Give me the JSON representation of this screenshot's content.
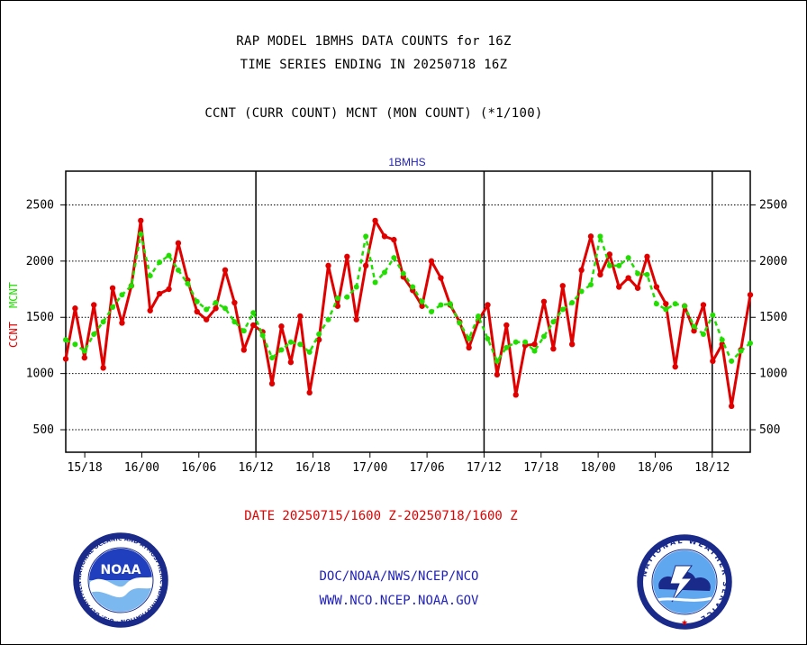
{
  "header": {
    "line1": "RAP MODEL 1BMHS DATA COUNTS for 16Z",
    "line2": "TIME SERIES ENDING IN 20250718 16Z",
    "line3": "CCNT (CURR COUNT) MCNT (MON COUNT) (*1/100)"
  },
  "footer": {
    "date_range": "DATE 20250715/1600 Z-20250718/1600 Z",
    "credit1": "DOC/NOAA/NWS/NCEP/NCO",
    "credit2": "WWW.NCO.NCEP.NOAA.GOV"
  },
  "logos": {
    "noaa": {
      "center_text": "NOAA",
      "ring_text": "NATIONAL OCEANIC AND ATMOSPHERIC ADMINISTRATION · U.S. DEPARTMENT OF COMMERCE"
    },
    "nws": {
      "ring_text": "NATIONAL WEATHER SERVICE"
    }
  },
  "chart_data": {
    "type": "line",
    "title": "1BMHS",
    "ylabel_left": [
      "CCNT",
      "MCNT"
    ],
    "ylim": [
      300,
      2800
    ],
    "yticks": [
      500,
      1000,
      1500,
      2000,
      2500
    ],
    "x_tick_labels": [
      "15/18",
      "16/00",
      "16/06",
      "16/12",
      "16/18",
      "17/00",
      "17/06",
      "17/12",
      "17/18",
      "18/00",
      "18/06",
      "18/12"
    ],
    "x_hours_start": "2025-07-15 16Z",
    "x_tick_hours": [
      2,
      8,
      14,
      20,
      26,
      32,
      38,
      44,
      50,
      56,
      62,
      68
    ],
    "day_boundaries_hours": [
      20,
      44,
      68
    ],
    "grid": true,
    "colors": {
      "ccnt": "#e00000",
      "mcnt": "#22dd00",
      "axis": "#000000",
      "title": "#2222bb"
    },
    "series": [
      {
        "name": "CCNT",
        "style": "solid",
        "values": [
          1130,
          1580,
          1140,
          1610,
          1050,
          1760,
          1450,
          1780,
          2360,
          1560,
          1710,
          1750,
          2160,
          1830,
          1550,
          1480,
          1580,
          1920,
          1630,
          1210,
          1430,
          1370,
          910,
          1420,
          1100,
          1510,
          830,
          1300,
          1960,
          1600,
          2040,
          1480,
          1960,
          2360,
          2220,
          2190,
          1860,
          1740,
          1600,
          2000,
          1850,
          1610,
          1460,
          1230,
          1470,
          1610,
          990,
          1430,
          810,
          1250,
          1260,
          1640,
          1220,
          1780,
          1260,
          1920,
          2220,
          1880,
          2060,
          1770,
          1850,
          1760,
          2040,
          1770,
          1620,
          1060,
          1600,
          1380,
          1610,
          1110,
          1260,
          710,
          1210,
          1700
        ]
      },
      {
        "name": "MCNT",
        "style": "dashed",
        "values": [
          1300,
          1260,
          1200,
          1350,
          1460,
          1590,
          1700,
          1780,
          2240,
          1870,
          1990,
          2050,
          1920,
          1800,
          1640,
          1570,
          1630,
          1580,
          1460,
          1380,
          1540,
          1340,
          1140,
          1210,
          1280,
          1260,
          1190,
          1350,
          1480,
          1670,
          1680,
          1770,
          2220,
          1810,
          1900,
          2030,
          1890,
          1770,
          1640,
          1550,
          1610,
          1620,
          1450,
          1310,
          1510,
          1310,
          1110,
          1230,
          1280,
          1280,
          1200,
          1330,
          1460,
          1570,
          1630,
          1730,
          1790,
          2220,
          1960,
          1960,
          2030,
          1890,
          1880,
          1620,
          1570,
          1620,
          1600,
          1420,
          1350,
          1520,
          1300,
          1110,
          1200,
          1270
        ]
      }
    ]
  }
}
